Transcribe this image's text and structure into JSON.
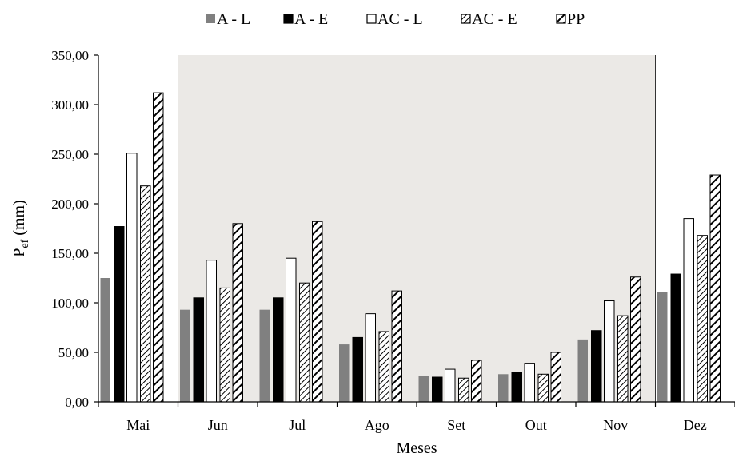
{
  "chart_data": {
    "type": "bar",
    "xlabel": "Meses",
    "ylabel_main": "P",
    "ylabel_sub": "ef",
    "ylabel_unit": " (mm)",
    "ylim": [
      0,
      350
    ],
    "yticks": [
      0,
      50,
      100,
      150,
      200,
      250,
      300,
      350
    ],
    "ytick_labels": [
      "0,00",
      "50,00",
      "100,00",
      "150,00",
      "200,00",
      "250,00",
      "300,00",
      "350,00"
    ],
    "categories": [
      "Mai",
      "Jun",
      "Jul",
      "Ago",
      "Set",
      "Out",
      "Nov",
      "Dez"
    ],
    "shaded_region": {
      "from_category": "Jun",
      "to_category": "Nov",
      "color": "#ebe9e6"
    },
    "legend_position": "top-center",
    "series": [
      {
        "name": "A - L",
        "style": "gray",
        "color": "#808080",
        "values": [
          125,
          93,
          93,
          58,
          26,
          28,
          63,
          111
        ]
      },
      {
        "name": "A - E",
        "style": "black",
        "color": "#000000",
        "values": [
          177,
          105,
          105,
          65,
          25,
          30,
          72,
          129
        ]
      },
      {
        "name": "AC - L",
        "style": "white",
        "color": "#ffffff",
        "values": [
          251,
          143,
          145,
          89,
          33,
          39,
          102,
          185
        ]
      },
      {
        "name": "AC - E",
        "style": "hatch-thin",
        "color": "#000000",
        "values": [
          218,
          115,
          120,
          71,
          24,
          28,
          87,
          168
        ]
      },
      {
        "name": "PP",
        "style": "hatch-thick",
        "color": "#000000",
        "values": [
          312,
          180,
          182,
          112,
          42,
          50,
          126,
          229
        ]
      }
    ]
  }
}
